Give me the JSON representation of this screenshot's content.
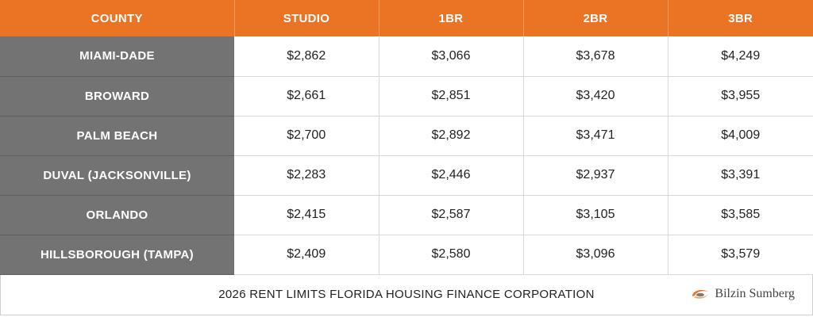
{
  "table": {
    "headers": [
      "COUNTY",
      "STUDIO",
      "1BR",
      "2BR",
      "3BR"
    ],
    "rows": [
      {
        "county": "MIAMI-DADE",
        "values": [
          "$2,862",
          "$3,066",
          "$3,678",
          "$4,249"
        ]
      },
      {
        "county": "BROWARD",
        "values": [
          "$2,661",
          "$2,851",
          "$3,420",
          "$3,955"
        ]
      },
      {
        "county": "PALM BEACH",
        "values": [
          "$2,700",
          "$2,892",
          "$3,471",
          "$4,009"
        ]
      },
      {
        "county": "DUVAL (JACKSONVILLE)",
        "values": [
          "$2,283",
          "$2,446",
          "$2,937",
          "$3,391"
        ]
      },
      {
        "county": "ORLANDO",
        "values": [
          "$2,415",
          "$2,587",
          "$3,105",
          "$3,585"
        ]
      },
      {
        "county": "HILLSBOROUGH (TAMPA)",
        "values": [
          "$2,409",
          "$2,580",
          "$3,096",
          "$3,579"
        ]
      }
    ]
  },
  "footer": {
    "caption": "2026 RENT LIMITS FLORIDA HOUSING FINANCE CORPORATION",
    "logo_text": "Bilzin Sumberg",
    "logo_icon": "bilzin-sumberg-logo-icon"
  },
  "colors": {
    "header_bg": "#ea7424",
    "county_bg": "#737373",
    "text": "#222222"
  }
}
